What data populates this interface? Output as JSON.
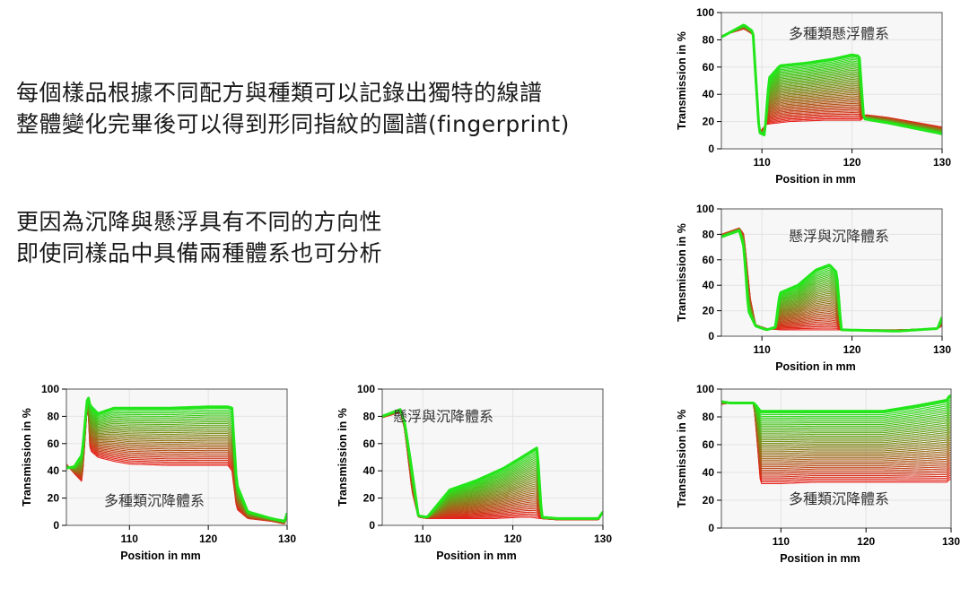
{
  "slide": {
    "lines_block1": [
      "每個樣品根據不同配方與種類可以記錄出獨特的線譜",
      "整體變化完畢後可以得到形同指紋的圖譜(fingerprint)"
    ],
    "lines_block2": [
      "更因為沉降與懸浮具有不同的方向性",
      "即使同樣品中具備兩種體系也可分析"
    ]
  },
  "colors": {
    "start": "#e8201a",
    "end": "#22e61a",
    "grid": "#e3e3e3",
    "plot_bg": "#f7f7f7"
  },
  "chart_data": [
    {
      "id": "chart-top-right",
      "type": "line",
      "pattern": "float",
      "annotation": "多種類懸浮體系",
      "xlabel": "Position in mm",
      "ylabel": "Transmission in %",
      "xlim": [
        105.5,
        130
      ],
      "ylim": [
        0,
        100
      ],
      "xticks": [
        110,
        120,
        130
      ],
      "yticks": [
        0,
        20,
        40,
        60,
        80,
        100
      ],
      "n_series": 44,
      "profile_first": [
        [
          105.5,
          83
        ],
        [
          108,
          88
        ],
        [
          109,
          84
        ],
        [
          109.7,
          12
        ],
        [
          110.5,
          18
        ],
        [
          113,
          20
        ],
        [
          117,
          21
        ],
        [
          120,
          21
        ],
        [
          121,
          21
        ],
        [
          121.5,
          25
        ],
        [
          124,
          23
        ],
        [
          130,
          16
        ]
      ],
      "profile_last": [
        [
          105.5,
          82
        ],
        [
          108,
          91
        ],
        [
          109,
          86
        ],
        [
          109.7,
          12
        ],
        [
          110.3,
          10
        ],
        [
          110.8,
          52
        ],
        [
          112,
          61
        ],
        [
          115,
          63
        ],
        [
          118,
          66
        ],
        [
          120,
          69
        ],
        [
          120.8,
          68
        ],
        [
          121.3,
          22
        ],
        [
          124,
          19
        ],
        [
          130,
          11
        ]
      ]
    },
    {
      "id": "chart-mid-right",
      "type": "line",
      "pattern": "mixed",
      "annotation": "懸浮與沉降體系",
      "xlabel": "Position in mm",
      "ylabel": "Transmission in %",
      "xlim": [
        105.5,
        130
      ],
      "ylim": [
        0,
        100
      ],
      "xticks": [
        110,
        120,
        130
      ],
      "yticks": [
        0,
        20,
        40,
        60,
        80,
        100
      ],
      "n_series": 40,
      "profile_first": [
        [
          105.5,
          80
        ],
        [
          107.5,
          85
        ],
        [
          108,
          80
        ],
        [
          108.7,
          30
        ],
        [
          109.3,
          9
        ],
        [
          110.5,
          6
        ],
        [
          112,
          5
        ],
        [
          113,
          5
        ],
        [
          118,
          5
        ],
        [
          119,
          5
        ],
        [
          125,
          5
        ],
        [
          129.5,
          6
        ],
        [
          130,
          8
        ]
      ],
      "profile_last": [
        [
          105.5,
          78
        ],
        [
          107.5,
          83
        ],
        [
          108,
          70
        ],
        [
          108.5,
          20
        ],
        [
          109.3,
          8
        ],
        [
          110.5,
          5
        ],
        [
          111.5,
          7
        ],
        [
          112,
          34
        ],
        [
          114,
          40
        ],
        [
          116,
          52
        ],
        [
          117.5,
          56
        ],
        [
          118.3,
          50
        ],
        [
          118.8,
          5
        ],
        [
          125,
          4
        ],
        [
          129.5,
          6
        ],
        [
          130,
          15
        ]
      ]
    },
    {
      "id": "chart-bottom-left",
      "type": "line",
      "pattern": "sediment",
      "annotation": "多種類沉降體系",
      "xlabel": "Position in mm",
      "ylabel": "Transmission in %",
      "xlim": [
        102,
        130
      ],
      "ylim": [
        0,
        100
      ],
      "xticks": [
        110,
        120,
        130
      ],
      "yticks": [
        0,
        20,
        40,
        60,
        80,
        100
      ],
      "n_series": 36,
      "profile_first": [
        [
          102,
          45
        ],
        [
          103,
          38
        ],
        [
          104,
          32
        ],
        [
          104.7,
          92
        ],
        [
          105,
          55
        ],
        [
          106,
          50
        ],
        [
          108,
          47
        ],
        [
          110,
          45
        ],
        [
          115,
          44
        ],
        [
          120,
          44
        ],
        [
          122.5,
          44
        ],
        [
          123,
          40
        ],
        [
          123.6,
          12
        ],
        [
          125,
          5
        ],
        [
          128,
          3
        ],
        [
          129.7,
          1
        ],
        [
          130,
          7
        ]
      ],
      "profile_last": [
        [
          102,
          42
        ],
        [
          103,
          43
        ],
        [
          104,
          52
        ],
        [
          104.7,
          96
        ],
        [
          105,
          88
        ],
        [
          106,
          82
        ],
        [
          108,
          86
        ],
        [
          110,
          86
        ],
        [
          115,
          86
        ],
        [
          120,
          87
        ],
        [
          122.5,
          87
        ],
        [
          123,
          86
        ],
        [
          123.6,
          30
        ],
        [
          125,
          10
        ],
        [
          128,
          5
        ],
        [
          129.7,
          3
        ],
        [
          130,
          9
        ]
      ]
    },
    {
      "id": "chart-bottom-middle",
      "type": "line",
      "pattern": "sediment-rise",
      "annotation": "懸浮與沉降體系",
      "xlabel": "Position in mm",
      "ylabel": "Transmission in %",
      "xlim": [
        105.5,
        130
      ],
      "ylim": [
        0,
        100
      ],
      "xticks": [
        110,
        120,
        130
      ],
      "yticks": [
        0,
        20,
        40,
        60,
        80,
        100
      ],
      "n_series": 40,
      "profile_first": [
        [
          105.5,
          79
        ],
        [
          107.5,
          83
        ],
        [
          108,
          70
        ],
        [
          108.8,
          25
        ],
        [
          109.5,
          6
        ],
        [
          110.5,
          5
        ],
        [
          112,
          5
        ],
        [
          118,
          5
        ],
        [
          121,
          6
        ],
        [
          122,
          6
        ],
        [
          123,
          5
        ],
        [
          125,
          4
        ],
        [
          129.5,
          4
        ],
        [
          130,
          9
        ]
      ],
      "profile_last": [
        [
          105.5,
          80
        ],
        [
          107.5,
          85
        ],
        [
          108,
          75
        ],
        [
          108.8,
          40
        ],
        [
          109.5,
          7
        ],
        [
          110.5,
          6
        ],
        [
          111,
          10
        ],
        [
          113,
          26
        ],
        [
          116,
          33
        ],
        [
          119,
          42
        ],
        [
          121,
          50
        ],
        [
          122.7,
          57
        ],
        [
          123.2,
          6
        ],
        [
          125,
          5
        ],
        [
          129.5,
          5
        ],
        [
          130,
          10
        ]
      ]
    },
    {
      "id": "chart-bottom-right",
      "type": "line",
      "pattern": "sediment",
      "annotation": "多種類沉降體系",
      "xlabel": "Position in mm",
      "ylabel": "Transmission in %",
      "xlim": [
        103,
        130
      ],
      "ylim": [
        0,
        100
      ],
      "xticks": [
        110,
        120,
        130
      ],
      "yticks": [
        0,
        20,
        40,
        60,
        80,
        100
      ],
      "n_series": 44,
      "profile_first": [
        [
          103,
          89
        ],
        [
          104,
          90
        ],
        [
          106.8,
          90
        ],
        [
          107.1,
          70
        ],
        [
          107.6,
          32
        ],
        [
          110,
          32
        ],
        [
          114,
          33
        ],
        [
          118,
          33
        ],
        [
          122,
          33
        ],
        [
          126,
          33
        ],
        [
          129.5,
          33
        ],
        [
          129.8,
          35
        ]
      ],
      "profile_last": [
        [
          103,
          91
        ],
        [
          104,
          90
        ],
        [
          106.8,
          90
        ],
        [
          107.1,
          88
        ],
        [
          107.6,
          84
        ],
        [
          110,
          84
        ],
        [
          114,
          84
        ],
        [
          118,
          84
        ],
        [
          122,
          84
        ],
        [
          126,
          88
        ],
        [
          129.5,
          92
        ],
        [
          129.8,
          95
        ]
      ]
    }
  ]
}
